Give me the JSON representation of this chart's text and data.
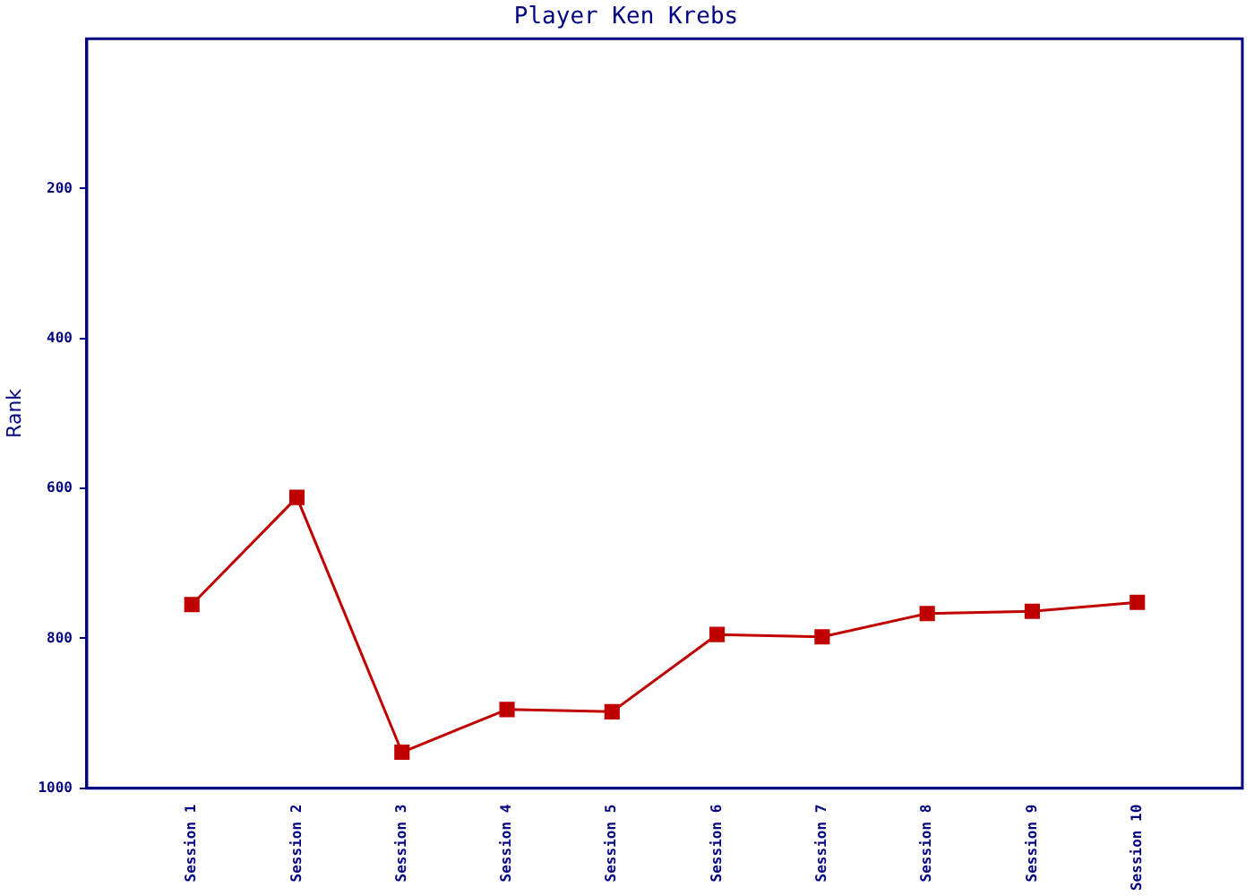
{
  "chart_data": {
    "type": "line",
    "title": "Player Ken Krebs",
    "ylabel": "Rank",
    "categories": [
      "Session 1",
      "Session 2",
      "Session 3",
      "Session 4",
      "Session 5",
      "Session 6",
      "Session 7",
      "Session 8",
      "Session 9",
      "Session 10"
    ],
    "series": [
      {
        "color": "#c00000",
        "values": [
          755,
          612,
          952,
          895,
          898,
          795,
          798,
          767,
          764,
          752
        ]
      }
    ],
    "ylim": [
      1000,
      0
    ],
    "yticks": [
      200,
      400,
      600,
      800,
      1000
    ],
    "grid": false,
    "legend": false,
    "marker": "square",
    "line_style": "solid"
  }
}
